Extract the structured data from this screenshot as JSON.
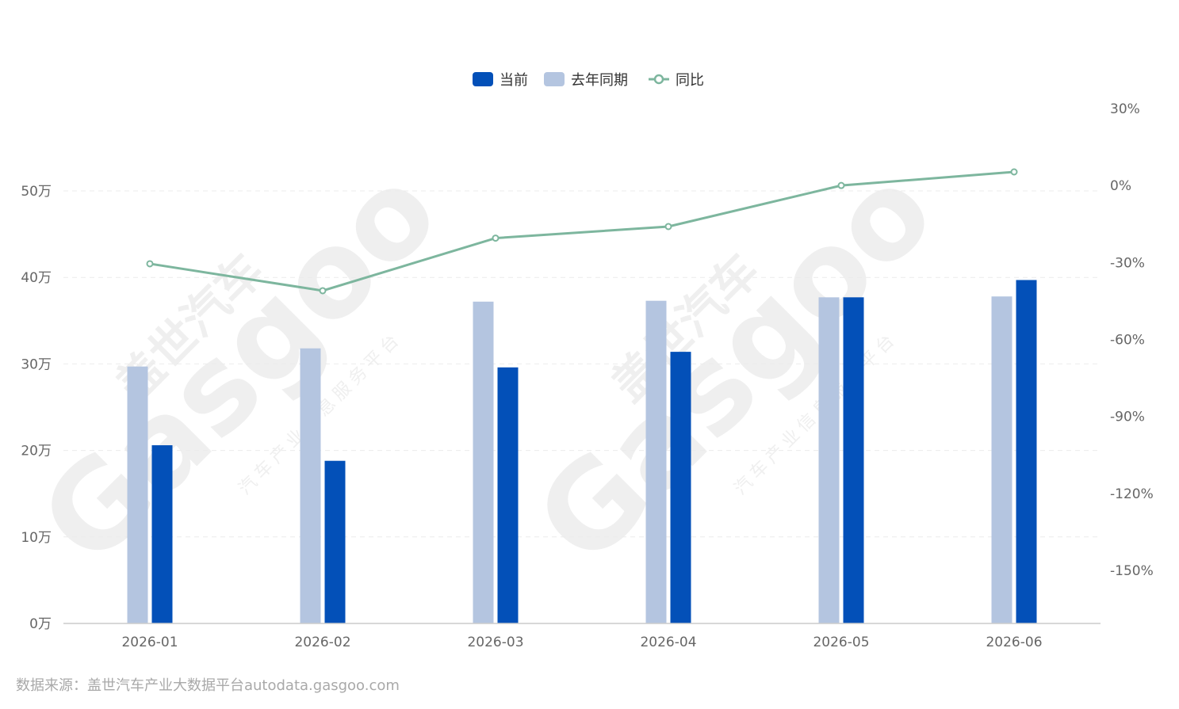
{
  "chart_data": {
    "type": "bar",
    "categories": [
      "2026-01",
      "2026-02",
      "2026-03",
      "2026-04",
      "2026-05",
      "2026-06"
    ],
    "series": [
      {
        "name": "当前",
        "type": "bar",
        "axis": "left",
        "color": "#0350B8",
        "values": [
          20.6,
          18.8,
          29.6,
          31.4,
          37.7,
          39.7
        ]
      },
      {
        "name": "去年同期",
        "type": "bar",
        "axis": "left",
        "color": "#B4C5E0",
        "values": [
          29.7,
          31.8,
          37.2,
          37.3,
          37.7,
          37.8
        ]
      },
      {
        "name": "同比",
        "type": "line",
        "axis": "right",
        "color": "#7DB69E",
        "values": [
          -30.5,
          -41.0,
          -20.5,
          -16.0,
          0.0,
          5.3
        ]
      }
    ],
    "left_axis": {
      "ylim": [
        0,
        50
      ],
      "ticks": [
        0,
        10,
        20,
        30,
        40,
        50
      ],
      "tick_labels": [
        "0万",
        "10万",
        "20万",
        "30万",
        "40万",
        "50万"
      ]
    },
    "right_axis": {
      "ylim": [
        -150,
        30
      ],
      "ticks": [
        -150,
        -120,
        -90,
        -60,
        -30,
        0,
        30
      ],
      "tick_labels": [
        "-150%",
        "-120%",
        "-90%",
        "-60%",
        "-30%",
        "0%",
        "30%"
      ]
    },
    "legend_position": "top-center",
    "grid": true
  },
  "watermark": {
    "brand": "盖世汽车",
    "logo": "Gasgoo",
    "tagline": "汽车产业信息服务平台"
  },
  "source_text": "数据来源：盖世汽车产业大数据平台autodata.gasgoo.com"
}
